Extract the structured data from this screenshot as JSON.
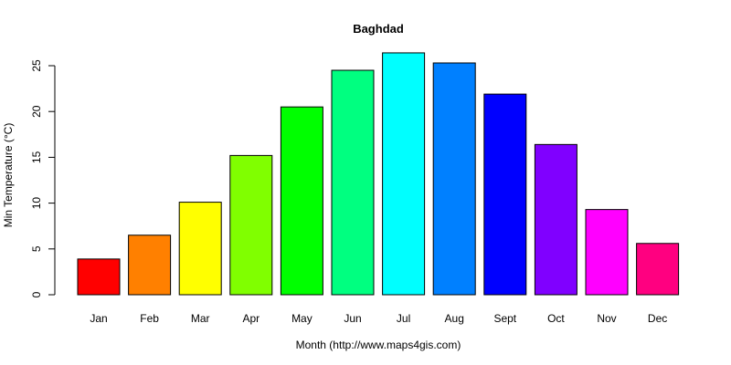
{
  "chart_data": {
    "type": "bar",
    "title": "Baghdad",
    "xlabel": "Month (http://www.maps4gis.com)",
    "ylabel": "Min Temperature (°C)",
    "ylim": [
      0,
      25
    ],
    "yticks": [
      0,
      5,
      10,
      15,
      20,
      25
    ],
    "categories": [
      "Jan",
      "Feb",
      "Mar",
      "Apr",
      "May",
      "Jun",
      "Jul",
      "Aug",
      "Sept",
      "Oct",
      "Nov",
      "Dec"
    ],
    "values": [
      3.9,
      6.5,
      10.1,
      15.2,
      20.5,
      24.5,
      26.4,
      25.3,
      21.9,
      16.4,
      9.3,
      5.6
    ],
    "colors": [
      "#FF0000",
      "#FF8000",
      "#FFFF00",
      "#80FF00",
      "#00FF00",
      "#00FF80",
      "#00FFFF",
      "#0080FF",
      "#0000FF",
      "#8000FF",
      "#FF00FF",
      "#FF0080"
    ],
    "grid": false,
    "legend": "none"
  }
}
